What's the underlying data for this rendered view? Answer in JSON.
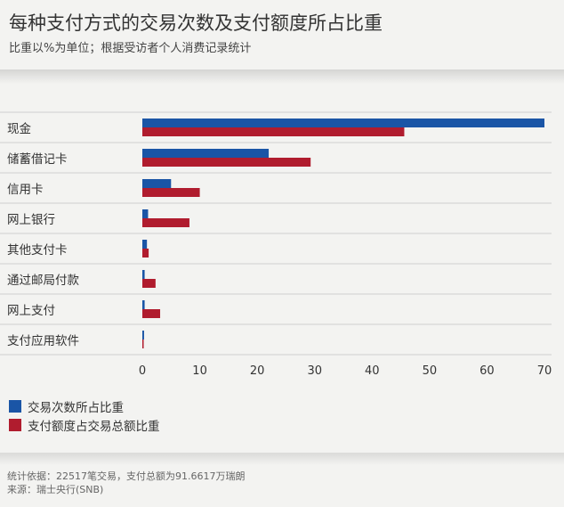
{
  "header": {
    "title": "每种支付方式的交易次数及支付额度所占比重",
    "subtitle": "比重以%为单位；根据受访者个人消费记录统计"
  },
  "colors": {
    "series1": "#1a55a6",
    "series2": "#b01c2e",
    "grid": "#cfcfcf",
    "background": "#f3f3f1"
  },
  "chart_data": {
    "type": "bar",
    "orientation": "horizontal",
    "categories": [
      "现金",
      "储蓄借记卡",
      "信用卡",
      "网上银行",
      "其他支付卡",
      "通过邮局付款",
      "网上支付",
      "支付应用软件"
    ],
    "series": [
      {
        "name": "交易次数所占比重",
        "values": [
          70,
          22,
          5,
          1,
          0.8,
          0.4,
          0.4,
          0.3
        ]
      },
      {
        "name": "支付额度占交易总额比重",
        "values": [
          45.6,
          29.3,
          10,
          8.2,
          1.1,
          2.3,
          3.1,
          0.2
        ]
      }
    ],
    "xlim": [
      0,
      70
    ],
    "xticks": [
      "0",
      "10",
      "20",
      "30",
      "40",
      "50",
      "60",
      "70"
    ],
    "grid": true,
    "legend": "bottom-left"
  },
  "legend": {
    "items": [
      {
        "label": "交易次数所占比重"
      },
      {
        "label": "支付额度占交易总额比重"
      }
    ]
  },
  "footer": {
    "note": "统计依据：22517笔交易，支付总额为91.6617万瑞朗",
    "source": "来源：瑞士央行(SNB)"
  }
}
